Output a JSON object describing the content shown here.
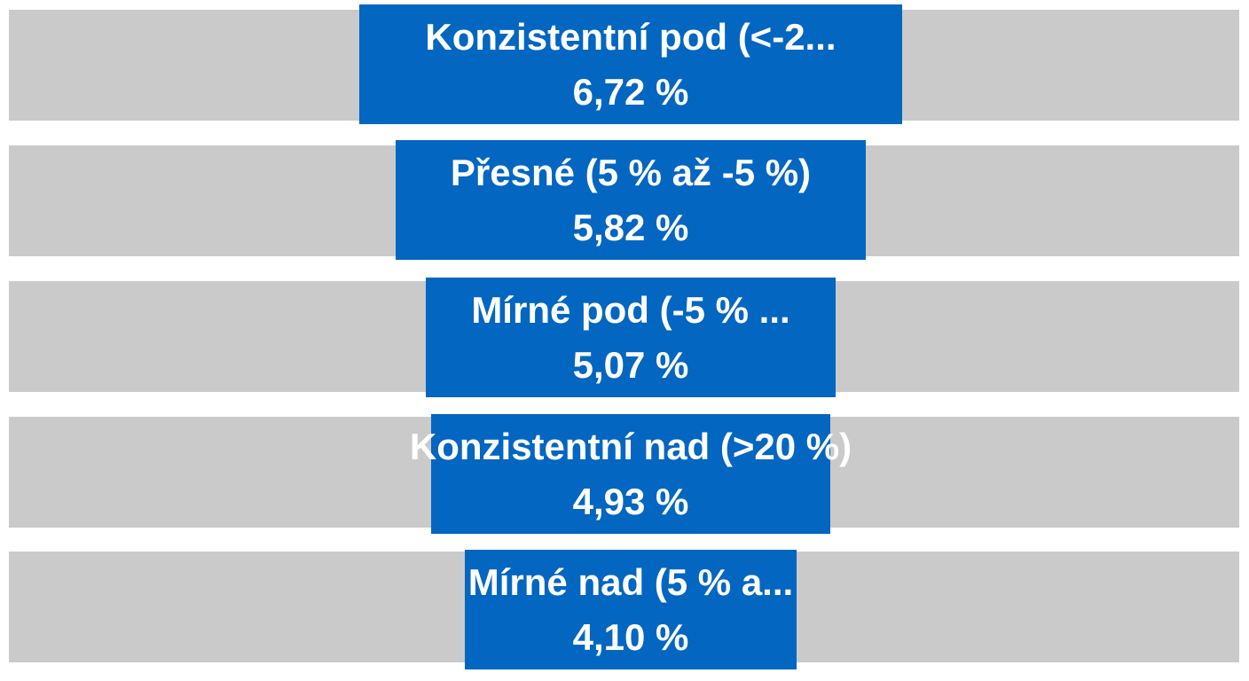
{
  "chart_data": {
    "type": "bar",
    "orientation": "horizontal-centered",
    "grid": false,
    "legend": "none",
    "colors": {
      "bar": "#0366c1",
      "track": "#cacaca",
      "label": "#ffffff"
    },
    "categories": [
      "Konzistentní pod (<-2...",
      "Přesné (5 % až -5 %)",
      "Mírné pod (-5 % ...",
      "Konzistentní nad (>20 %)",
      "Mírné nad (5 % a..."
    ],
    "values": [
      6.72,
      5.82,
      5.07,
      4.93,
      4.1
    ],
    "value_labels": [
      "6,72 %",
      "5,82 %",
      "5,07 %",
      "4,93 %",
      "4,10 %"
    ]
  }
}
